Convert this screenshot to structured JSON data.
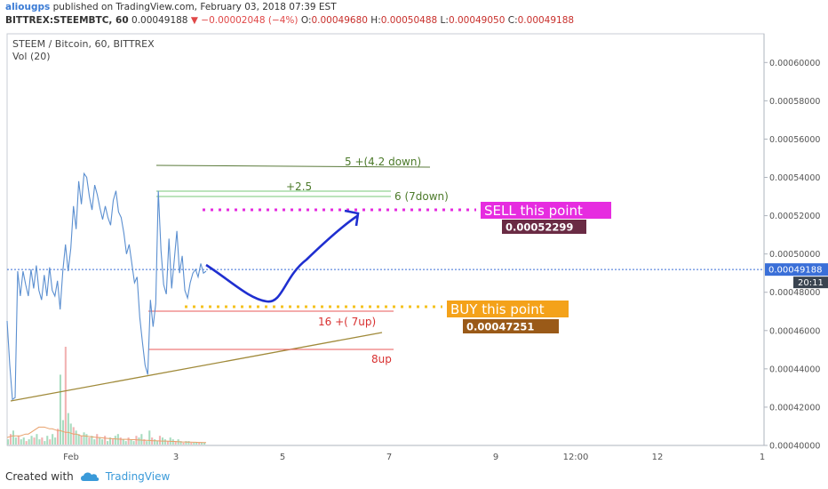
{
  "header": {
    "author": "aliougps",
    "published_text": "published on TradingView.com, February 03, 2018 07:39 EST",
    "symbol": "BITTREX:STEEMBTC, 60",
    "last": "0.00049188",
    "change_arrow": "▼",
    "change": "−0.00002048 (−4%)",
    "open_label": "O:",
    "open": "0.00049680",
    "high_label": "H:",
    "high": "0.00050488",
    "low_label": "L:",
    "low": "0.00049050",
    "close_label": "C:",
    "close": "0.00049188"
  },
  "legend": {
    "title": "STEEM / Bitcoin, 60, BITTREX",
    "volume": "Vol (20)"
  },
  "footer": {
    "created_with": "Created with",
    "brand": "TradingView",
    "logo_icon": "tradingview-cloud-icon"
  },
  "colors": {
    "price": "#5b8fd0",
    "drawn_path": "#1f2fd0",
    "sell": "#e62ce0",
    "buy": "#f4a21a",
    "trend": "#a08a3a",
    "green_line": "#78c878",
    "dark_green_line": "#5a7a3a",
    "red_line": "#e85a5a",
    "current_price": "#3a6fd8"
  },
  "chart_data": {
    "type": "line",
    "title": "STEEM / Bitcoin, 60, BITTREX",
    "ylim": [
      0.0004,
      0.000615
    ],
    "y_ticks": [
      "0.00040000",
      "0.00042000",
      "0.00044000",
      "0.00046000",
      "0.00048000",
      "0.00050000",
      "0.00052000",
      "0.00054000",
      "0.00056000",
      "0.00058000",
      "0.00060000"
    ],
    "x_ticks": [
      "Feb",
      "3",
      "5",
      "7",
      "9",
      "12:00",
      "12",
      "1"
    ],
    "current_price": {
      "value": 0.00049188,
      "label": "0.00049188",
      "countdown": "20:11"
    },
    "series": [
      {
        "values": [
          0.000465,
          0.000442,
          0.000424,
          0.000425,
          0.000491,
          0.000478,
          0.000491,
          0.000484,
          0.000478,
          0.000492,
          0.000482,
          0.000494,
          0.000481,
          0.000476,
          0.000489,
          0.000478,
          0.000493,
          0.000481,
          0.000478,
          0.000486,
          0.000471,
          0.000491,
          0.000505,
          0.000491,
          0.000503,
          0.000525,
          0.000513,
          0.000538,
          0.000526,
          0.000542,
          0.00054,
          0.00053,
          0.000523,
          0.000536,
          0.000531,
          0.000524,
          0.000518,
          0.000525,
          0.000519,
          0.000515,
          0.000528,
          0.000533,
          0.000522,
          0.000519,
          0.000511,
          0.0005,
          0.000505,
          0.000495,
          0.000485,
          0.000488,
          0.000467,
          0.000454,
          0.000442,
          0.000437,
          0.000476,
          0.000462,
          0.000474,
          0.000533,
          0.000502,
          0.000484,
          0.000479,
          0.000508,
          0.000482,
          0.000497,
          0.000512,
          0.00049,
          0.000499,
          0.000481,
          0.000477,
          0.000485,
          0.00049,
          0.000492,
          0.000488,
          0.000495,
          0.00049,
          0.000491
        ]
      }
    ],
    "volume": {
      "values": [
        3,
        6,
        8,
        4,
        5,
        3,
        4,
        2,
        3,
        5,
        4,
        6,
        3,
        4,
        2,
        5,
        3,
        6,
        4,
        9,
        40,
        14,
        56,
        18,
        12,
        10,
        8,
        6,
        5,
        7,
        6,
        4,
        5,
        3,
        6,
        4,
        3,
        5,
        2,
        4,
        3,
        5,
        6,
        4,
        3,
        2,
        4,
        3,
        2,
        5,
        4,
        6,
        3,
        2,
        8,
        4,
        3,
        2,
        5,
        4,
        3,
        2,
        4,
        3,
        2,
        3,
        2,
        1,
        2,
        2,
        1,
        1,
        1,
        1,
        1,
        1
      ],
      "ma": [
        4,
        4.5,
        5,
        5,
        5,
        5,
        5.5,
        6,
        6,
        7,
        8,
        9,
        10,
        10,
        10,
        9.5,
        9,
        9,
        8.5,
        8,
        8,
        7.5,
        7,
        7,
        6.5,
        6,
        6,
        5.5,
        5,
        5,
        4.8,
        4.6,
        4.4,
        4.2,
        4,
        4,
        3.8,
        3.6,
        3.5,
        3.4,
        3.3,
        3.2,
        3.1,
        3,
        3,
        3,
        2.9,
        2.8,
        2.8,
        2.7,
        2.6,
        2.5,
        2.4,
        2.4,
        2.3,
        2.2,
        2.2,
        2.1,
        2,
        2,
        2,
        1.9,
        1.8,
        1.8,
        1.7,
        1.6,
        1.5,
        1.5,
        1.4,
        1.4,
        1.3,
        1.3,
        1.2,
        1.2,
        1.1,
        1.1
      ]
    },
    "annotations": {
      "dark_green_label": "5 +(4.2 down)",
      "plus_label": "+2.5",
      "green_label": "6 (7down)",
      "sell_label": "SELL this point",
      "sell_price": "0.00052299",
      "buy_label": "BUY this point",
      "buy_price": "0.00047251",
      "red1_label": "16 +( 7up)",
      "red2_label": "8up"
    }
  }
}
